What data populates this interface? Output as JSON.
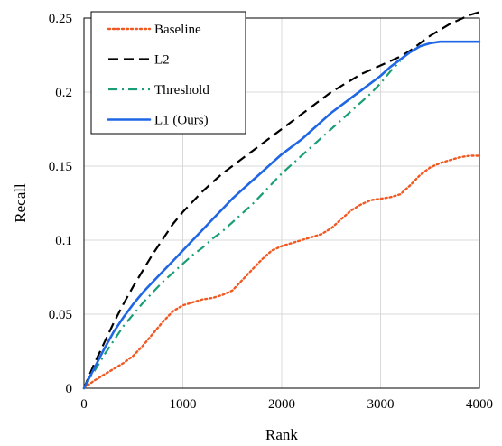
{
  "chart_data": {
    "type": "line",
    "title": "",
    "xlabel": "Rank",
    "ylabel": "Recall",
    "xlim": [
      0,
      4000
    ],
    "ylim": [
      0,
      0.25
    ],
    "xticks": [
      0,
      1000,
      2000,
      3000,
      4000
    ],
    "yticks": [
      0,
      0.05,
      0.1,
      0.15,
      0.2,
      0.25
    ],
    "xtick_labels": [
      "0",
      "1000",
      "2000",
      "3000",
      "4000"
    ],
    "ytick_labels": [
      "0",
      "0.05",
      "0.1",
      "0.15",
      "0.2",
      "0.25"
    ],
    "grid": true,
    "legend_position": "top-left",
    "series": [
      {
        "name": "Baseline",
        "color": "#f05a22",
        "style": "dotted",
        "x": [
          0,
          100,
          200,
          300,
          400,
          500,
          600,
          700,
          800,
          900,
          1000,
          1100,
          1200,
          1300,
          1400,
          1500,
          1600,
          1700,
          1800,
          1900,
          2000,
          2100,
          2200,
          2300,
          2400,
          2500,
          2600,
          2700,
          2800,
          2900,
          3000,
          3100,
          3200,
          3300,
          3400,
          3500,
          3600,
          3700,
          3800,
          3900,
          4000
        ],
        "values": [
          0,
          0.005,
          0.009,
          0.013,
          0.017,
          0.022,
          0.029,
          0.037,
          0.045,
          0.052,
          0.056,
          0.058,
          0.06,
          0.061,
          0.063,
          0.066,
          0.073,
          0.08,
          0.087,
          0.093,
          0.096,
          0.098,
          0.1,
          0.102,
          0.104,
          0.108,
          0.114,
          0.12,
          0.124,
          0.127,
          0.128,
          0.129,
          0.131,
          0.137,
          0.144,
          0.149,
          0.152,
          0.154,
          0.156,
          0.157,
          0.157
        ]
      },
      {
        "name": "L2",
        "color": "#000000",
        "style": "dashed",
        "x": [
          0,
          100,
          200,
          300,
          400,
          500,
          600,
          700,
          800,
          900,
          1000,
          1100,
          1200,
          1300,
          1400,
          1500,
          1600,
          1700,
          1800,
          1900,
          2000,
          2100,
          2200,
          2300,
          2400,
          2500,
          2600,
          2700,
          2800,
          2900,
          3000,
          3100,
          3200,
          3300,
          3400,
          3500,
          3600,
          3700,
          3800,
          3900,
          4000
        ],
        "values": [
          0,
          0.016,
          0.03,
          0.044,
          0.057,
          0.069,
          0.08,
          0.091,
          0.101,
          0.111,
          0.119,
          0.126,
          0.133,
          0.139,
          0.145,
          0.15,
          0.155,
          0.16,
          0.165,
          0.17,
          0.175,
          0.18,
          0.185,
          0.19,
          0.195,
          0.2,
          0.204,
          0.208,
          0.212,
          0.215,
          0.218,
          0.221,
          0.224,
          0.228,
          0.233,
          0.238,
          0.242,
          0.246,
          0.249,
          0.252,
          0.254
        ]
      },
      {
        "name": "Threshold",
        "color": "#1b9e77",
        "style": "dash-dot",
        "x": [
          0,
          100,
          200,
          300,
          400,
          500,
          600,
          700,
          800,
          900,
          1000,
          1100,
          1200,
          1300,
          1400,
          1500,
          1600,
          1700,
          1800,
          1900,
          2000,
          2100,
          2200,
          2300,
          2400,
          2500,
          2600,
          2700,
          2800,
          2900,
          3000,
          3100,
          3200
        ],
        "values": [
          0,
          0.011,
          0.022,
          0.032,
          0.042,
          0.05,
          0.058,
          0.065,
          0.072,
          0.078,
          0.084,
          0.09,
          0.095,
          0.101,
          0.106,
          0.112,
          0.118,
          0.124,
          0.131,
          0.138,
          0.145,
          0.151,
          0.157,
          0.163,
          0.169,
          0.175,
          0.181,
          0.187,
          0.193,
          0.199,
          0.206,
          0.214,
          0.221
        ]
      },
      {
        "name": "L1 (Ours)",
        "color": "#1f66e5",
        "style": "solid",
        "x": [
          0,
          100,
          200,
          300,
          400,
          500,
          600,
          700,
          800,
          900,
          1000,
          1100,
          1200,
          1300,
          1400,
          1500,
          1600,
          1700,
          1800,
          1900,
          2000,
          2100,
          2200,
          2300,
          2400,
          2500,
          2600,
          2700,
          2800,
          2900,
          3000,
          3100,
          3200,
          3300,
          3400,
          3500,
          3600,
          3700,
          3800,
          3900,
          4000
        ],
        "values": [
          0,
          0.013,
          0.026,
          0.038,
          0.048,
          0.057,
          0.065,
          0.072,
          0.079,
          0.086,
          0.093,
          0.1,
          0.107,
          0.114,
          0.121,
          0.128,
          0.134,
          0.14,
          0.146,
          0.152,
          0.158,
          0.163,
          0.168,
          0.174,
          0.18,
          0.186,
          0.191,
          0.196,
          0.201,
          0.206,
          0.211,
          0.217,
          0.222,
          0.227,
          0.231,
          0.233,
          0.234,
          0.234,
          0.234,
          0.234,
          0.234
        ]
      }
    ]
  }
}
